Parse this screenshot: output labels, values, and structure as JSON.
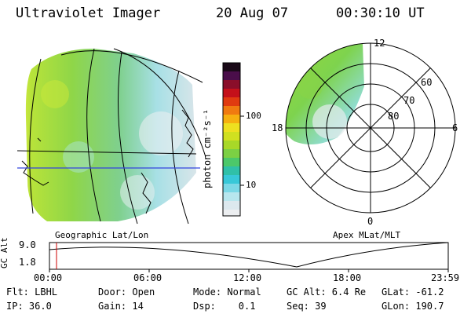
{
  "header": {
    "instrument": "Ultraviolet Imager",
    "date": "20 Aug 07",
    "time": "00:30:10 UT"
  },
  "colorbar": {
    "unit": "photon cm⁻²s⁻¹",
    "ticks": [
      "100",
      "10"
    ]
  },
  "polar_plot": {
    "mlt_labels": [
      "12",
      "18",
      "6",
      "0"
    ],
    "lat_labels": [
      "60",
      "70",
      "80"
    ],
    "caption": "Apex MLat/MLT"
  },
  "geo_plot": {
    "caption": "Geographic Lat/Lon"
  },
  "altitude_panel": {
    "ylabel": "GC Alt",
    "yticks": [
      "9.0",
      "1.8"
    ],
    "xticks": [
      "00:00",
      "06:00",
      "12:00",
      "18:00",
      "23:59"
    ]
  },
  "status": {
    "filter": "Flt: LBHL",
    "ip": "IP: 36.0",
    "door": "Door: Open",
    "gain": "Gain: 14",
    "mode": "Mode: Normal",
    "dsp": "Dsp:    0.1",
    "gcalt": "GC Alt: 6.4 Re",
    "seq": "Seq: 39",
    "glat": "GLat: -61.2",
    "glon": "GLon: 190.7"
  },
  "colors": {
    "grid": "#000000",
    "cursor": "#cc0000",
    "equator": "#3344dd"
  }
}
